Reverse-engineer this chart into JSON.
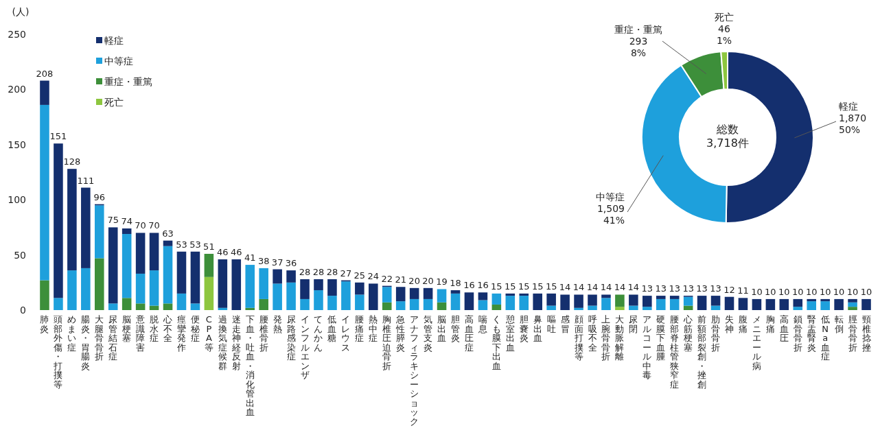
{
  "chart_data": [
    {
      "type": "bar",
      "stacked": true,
      "ylabel": "(人)",
      "ylim": [
        0,
        250
      ],
      "yticks": [
        0,
        50,
        100,
        150,
        200,
        250
      ],
      "legend": "top left",
      "categories": [
        "肺炎",
        "頭部外傷・打撲等",
        "めまい症",
        "腸炎・胃腸炎",
        "大腿骨骨折",
        "尿管結石症",
        "脳梗塞",
        "意識障害",
        "脱水症",
        "心不全",
        "痙攣発作",
        "便秘症",
        "CPA等",
        "過換気症候群",
        "迷走神経反射",
        "下血・吐血・消化管出血",
        "腰椎骨折",
        "発熱",
        "尿路感染症",
        "インフルエンザ",
        "てんかん",
        "低血糖",
        "イレウス",
        "腰痛症",
        "熱中症",
        "胸椎圧迫骨折",
        "急性膵炎",
        "アナフィラキシーショック",
        "気管支炎",
        "脳出血",
        "胆管炎",
        "高血圧症",
        "喘息",
        "くも膜下出血",
        "憩室出血",
        "胆嚢炎",
        "鼻出血",
        "嘔吐",
        "感冒",
        "顔面打撲等",
        "呼吸不全",
        "上腕骨骨折",
        "大動脈解離",
        "尿閉",
        "アルコール中毒",
        "硬膜下血腫",
        "腰部脊柱管狭窄症",
        "心筋梗塞",
        "前額部裂創・挫創",
        "肋骨骨折",
        "失神",
        "腹痛",
        "メニエール病",
        "胸痛",
        "高血圧",
        "鎖骨骨折",
        "腎盂腎炎",
        "低Na血症",
        "転倒",
        "脛骨骨折",
        "頸椎捻挫"
      ],
      "series": [
        {
          "name": "死亡",
          "color": "#8dc63f",
          "values": [
            0,
            0,
            0,
            0,
            0,
            0,
            0,
            0,
            0,
            0,
            0,
            0,
            30,
            0,
            0,
            0,
            0,
            0,
            0,
            0,
            0,
            0,
            0,
            0,
            0,
            0,
            0,
            0,
            0,
            0,
            0,
            0,
            0,
            0,
            0,
            0,
            0,
            0,
            0,
            0,
            0,
            0,
            3,
            0,
            0,
            0,
            0,
            0,
            0,
            0,
            0,
            0,
            0,
            0,
            0,
            0,
            0,
            0,
            0,
            0,
            0
          ]
        },
        {
          "name": "重症・重篤",
          "color": "#3d8f3a",
          "values": [
            27,
            0,
            0,
            0,
            47,
            0,
            11,
            6,
            4,
            6,
            0,
            0,
            21,
            0,
            0,
            2,
            10,
            0,
            0,
            0,
            0,
            0,
            0,
            0,
            0,
            7,
            0,
            0,
            0,
            7,
            0,
            0,
            0,
            5,
            0,
            0,
            0,
            0,
            0,
            0,
            0,
            0,
            11,
            0,
            0,
            0,
            0,
            4,
            0,
            0,
            0,
            0,
            0,
            0,
            0,
            0,
            0,
            0,
            0,
            3,
            0
          ]
        },
        {
          "name": "中等症",
          "color": "#1ea0dc",
          "values": [
            159,
            11,
            36,
            38,
            48,
            6,
            58,
            27,
            32,
            52,
            15,
            6,
            0,
            2,
            0,
            39,
            28,
            24,
            25,
            10,
            18,
            13,
            26,
            14,
            0,
            14,
            8,
            10,
            10,
            12,
            15,
            0,
            9,
            10,
            13,
            13,
            0,
            4,
            0,
            2,
            4,
            11,
            0,
            4,
            3,
            10,
            10,
            8,
            0,
            4,
            0,
            0,
            0,
            0,
            0,
            3,
            8,
            8,
            0,
            4,
            0
          ]
        },
        {
          "name": "軽症",
          "color": "#142f6e",
          "values": [
            22,
            140,
            92,
            73,
            1,
            69,
            5,
            37,
            34,
            5,
            38,
            47,
            0,
            44,
            46,
            0,
            0,
            13,
            11,
            18,
            10,
            15,
            1,
            11,
            24,
            1,
            13,
            10,
            10,
            0,
            3,
            16,
            7,
            0,
            2,
            2,
            15,
            11,
            14,
            12,
            10,
            3,
            0,
            10,
            10,
            3,
            3,
            1,
            13,
            9,
            12,
            11,
            10,
            10,
            10,
            7,
            2,
            2,
            10,
            3,
            10
          ]
        }
      ],
      "totals": [
        "208",
        "151",
        "128",
        "111",
        "96",
        "75",
        "74",
        "70",
        "70",
        "63",
        "53",
        "53",
        "51",
        "46",
        "46",
        "41",
        "38",
        "37",
        "36",
        "28",
        "28",
        "28",
        "27",
        "25",
        "24",
        "22",
        "21",
        "20",
        "20",
        "19",
        "18",
        "16",
        "16",
        "15",
        "15",
        "15",
        "15",
        "15",
        "14",
        "14",
        "14",
        "14",
        "14",
        "14",
        "13",
        "13",
        "13",
        "13",
        "13",
        "13",
        "12",
        "11",
        "10",
        "10",
        "10",
        "10",
        "10",
        "10",
        "10",
        "10",
        "10"
      ]
    },
    {
      "type": "donut",
      "categories": [
        "軽症",
        "中等症",
        "重症・重篤",
        "死亡"
      ],
      "values": [
        1870,
        1509,
        293,
        46
      ],
      "colors": [
        "#142f6e",
        "#1ea0dc",
        "#3d8f3a",
        "#8dc63f"
      ],
      "value_labels": [
        "1,870\n50%",
        "1,509\n41%",
        "293\n8%",
        "46\n1%"
      ],
      "annotations": [
        "総数\n3,718件"
      ]
    }
  ]
}
